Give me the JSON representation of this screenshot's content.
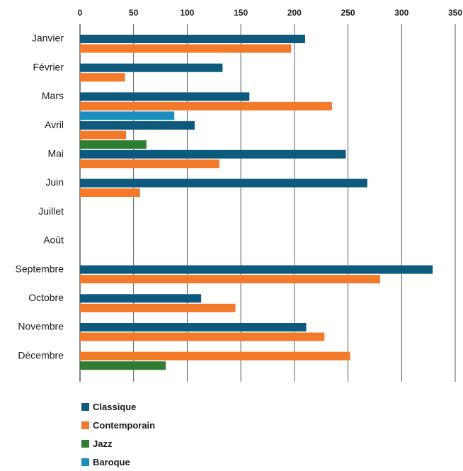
{
  "chart_data": {
    "type": "bar",
    "orientation": "horizontal",
    "categories": [
      "Janvier",
      "Février",
      "Mars",
      "Avril",
      "Mai",
      "Juin",
      "Juillet",
      "Août",
      "Septembre",
      "Octobre",
      "Novembre",
      "Décembre"
    ],
    "series": [
      {
        "name": "Classique",
        "color": "#0d5a7e",
        "values": [
          210,
          133,
          158,
          107,
          248,
          268,
          null,
          null,
          329,
          113,
          211,
          null
        ]
      },
      {
        "name": "Contemporain",
        "color": "#f27a2a",
        "values": [
          197,
          42,
          235,
          43,
          130,
          56,
          null,
          null,
          280,
          145,
          228,
          252
        ]
      },
      {
        "name": "Jazz",
        "color": "#2e7d32",
        "values": [
          null,
          null,
          null,
          62,
          null,
          null,
          null,
          null,
          null,
          null,
          null,
          80
        ]
      },
      {
        "name": "Baroque",
        "color": "#1a8fbf",
        "values": [
          null,
          null,
          88,
          null,
          null,
          null,
          null,
          null,
          null,
          null,
          null,
          null
        ]
      }
    ],
    "xlim": [
      0,
      350
    ],
    "xticks": [
      0,
      50,
      100,
      150,
      200,
      250,
      300,
      350
    ],
    "grid": true,
    "legend_position": "bottom-left"
  }
}
